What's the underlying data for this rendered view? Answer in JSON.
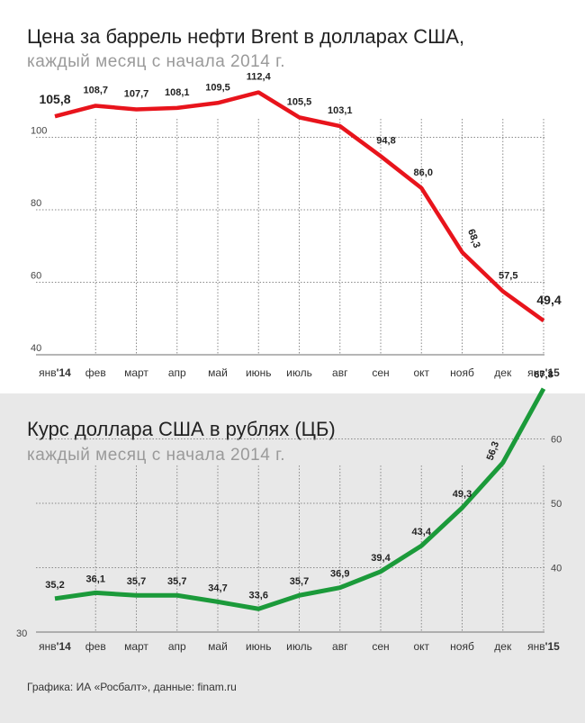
{
  "colors": {
    "brent_line": "#e8141c",
    "usd_line": "#1b9a3a",
    "grid": "#8a8a8a",
    "text": "#222222",
    "subtle": "#9a9a9a"
  },
  "credit": "Графика: ИА «Росбалт», данные: finam.ru",
  "chart_data": [
    {
      "type": "line",
      "title": "Цена за баррель нефти Brent в долларах США,",
      "subtitle": "каждый месяц с начала 2014 г.",
      "categories": [
        "янв",
        "фев",
        "март",
        "апр",
        "май",
        "июнь",
        "июль",
        "авг",
        "сен",
        "окт",
        "нояб",
        "дек",
        "янв"
      ],
      "category_suffix": [
        "'14",
        "",
        "",
        "",
        "",
        "",
        "",
        "",
        "",
        "",
        "",
        "",
        "'15"
      ],
      "values": [
        105.8,
        108.7,
        107.7,
        108.1,
        109.5,
        112.4,
        105.5,
        103.1,
        94.8,
        86.0,
        68.3,
        57.5,
        49.4
      ],
      "value_labels": [
        "105,8",
        "108,7",
        "107,7",
        "108,1",
        "109,5",
        "112,4",
        "105,5",
        "103,1",
        "94,8",
        "86,0",
        "68,3",
        "57,5",
        "49,4"
      ],
      "yticks": [
        "100",
        "80",
        "60",
        "40"
      ],
      "ytick_values": [
        100,
        80,
        60,
        40
      ],
      "ylim": [
        40,
        120
      ],
      "ytick_side": "left",
      "xlabel": "",
      "ylabel": ""
    },
    {
      "type": "line",
      "title": "Курс доллара США в рублях (ЦБ)",
      "subtitle": "каждый месяц с начала 2014 г.",
      "categories": [
        "янв",
        "фев",
        "март",
        "апр",
        "май",
        "июнь",
        "июль",
        "авг",
        "сен",
        "окт",
        "нояб",
        "дек",
        "янв"
      ],
      "category_suffix": [
        "'14",
        "",
        "",
        "",
        "",
        "",
        "",
        "",
        "",
        "",
        "",
        "",
        "'15"
      ],
      "values": [
        35.2,
        36.1,
        35.7,
        35.7,
        34.7,
        33.6,
        35.7,
        36.9,
        39.4,
        43.4,
        49.3,
        56.3,
        67.8
      ],
      "value_labels": [
        "35,2",
        "36,1",
        "35,7",
        "35,7",
        "34,7",
        "33,6",
        "35,7",
        "36,9",
        "39,4",
        "43,4",
        "49,3",
        "56,3",
        "67,8"
      ],
      "yticks": [
        "30",
        "40",
        "50",
        "60"
      ],
      "ytick_values": [
        30,
        40,
        50,
        60
      ],
      "ylim": [
        30,
        70
      ],
      "ytick_side": "right",
      "xlabel": "",
      "ylabel": ""
    }
  ]
}
